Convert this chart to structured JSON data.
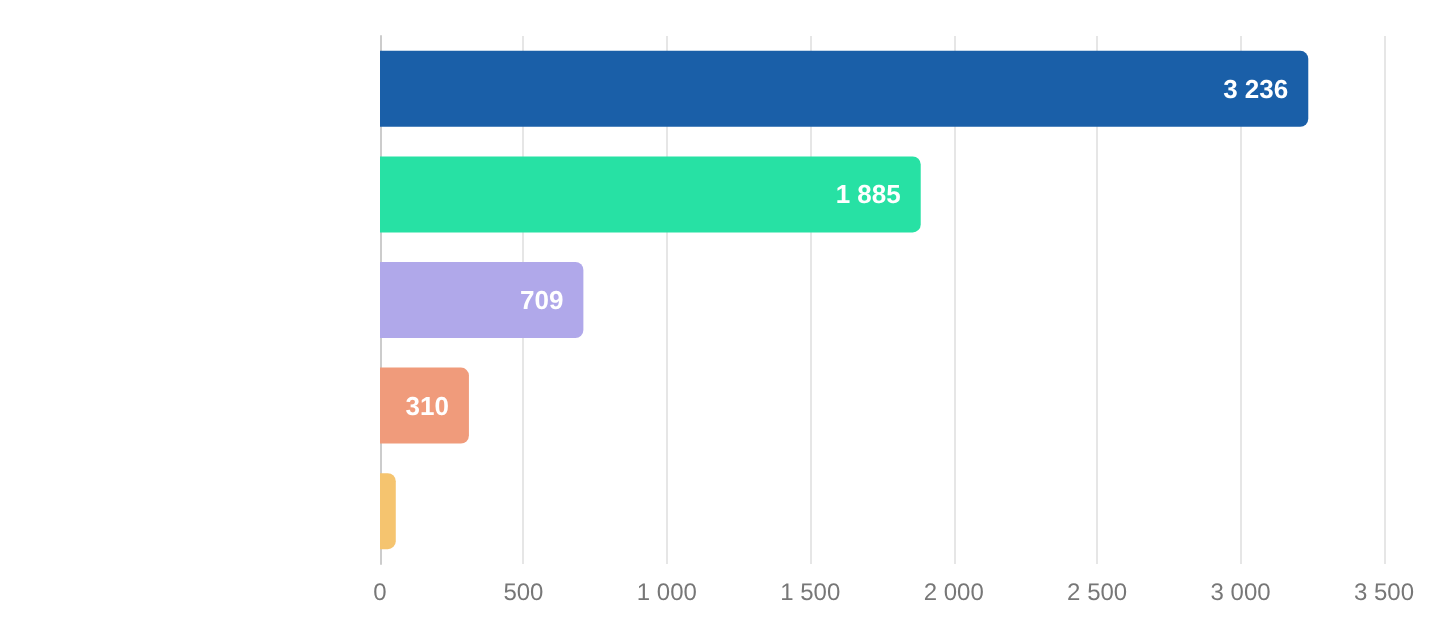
{
  "chart_data": {
    "type": "bar",
    "orientation": "horizontal",
    "categories": [
      null,
      null,
      null,
      null,
      null
    ],
    "values": [
      3236,
      1885,
      709,
      310,
      55
    ],
    "colors": [
      "#1a5fa8",
      "#27e1a4",
      "#b0a8ea",
      "#f09b7b",
      "#f5c46f"
    ],
    "value_labels": [
      "3 236",
      "1 885",
      "709",
      "310",
      null
    ],
    "xlim": [
      0,
      3500
    ],
    "xticks": [
      {
        "value": 0,
        "label": "0"
      },
      {
        "value": 500,
        "label": "500"
      },
      {
        "value": 1000,
        "label": "1 000"
      },
      {
        "value": 1500,
        "label": "1 500"
      },
      {
        "value": 2000,
        "label": "2 000"
      },
      {
        "value": 2500,
        "label": "2 500"
      },
      {
        "value": 3000,
        "label": "3 000"
      },
      {
        "value": 3500,
        "label": "3 500"
      }
    ],
    "grid": "x"
  }
}
